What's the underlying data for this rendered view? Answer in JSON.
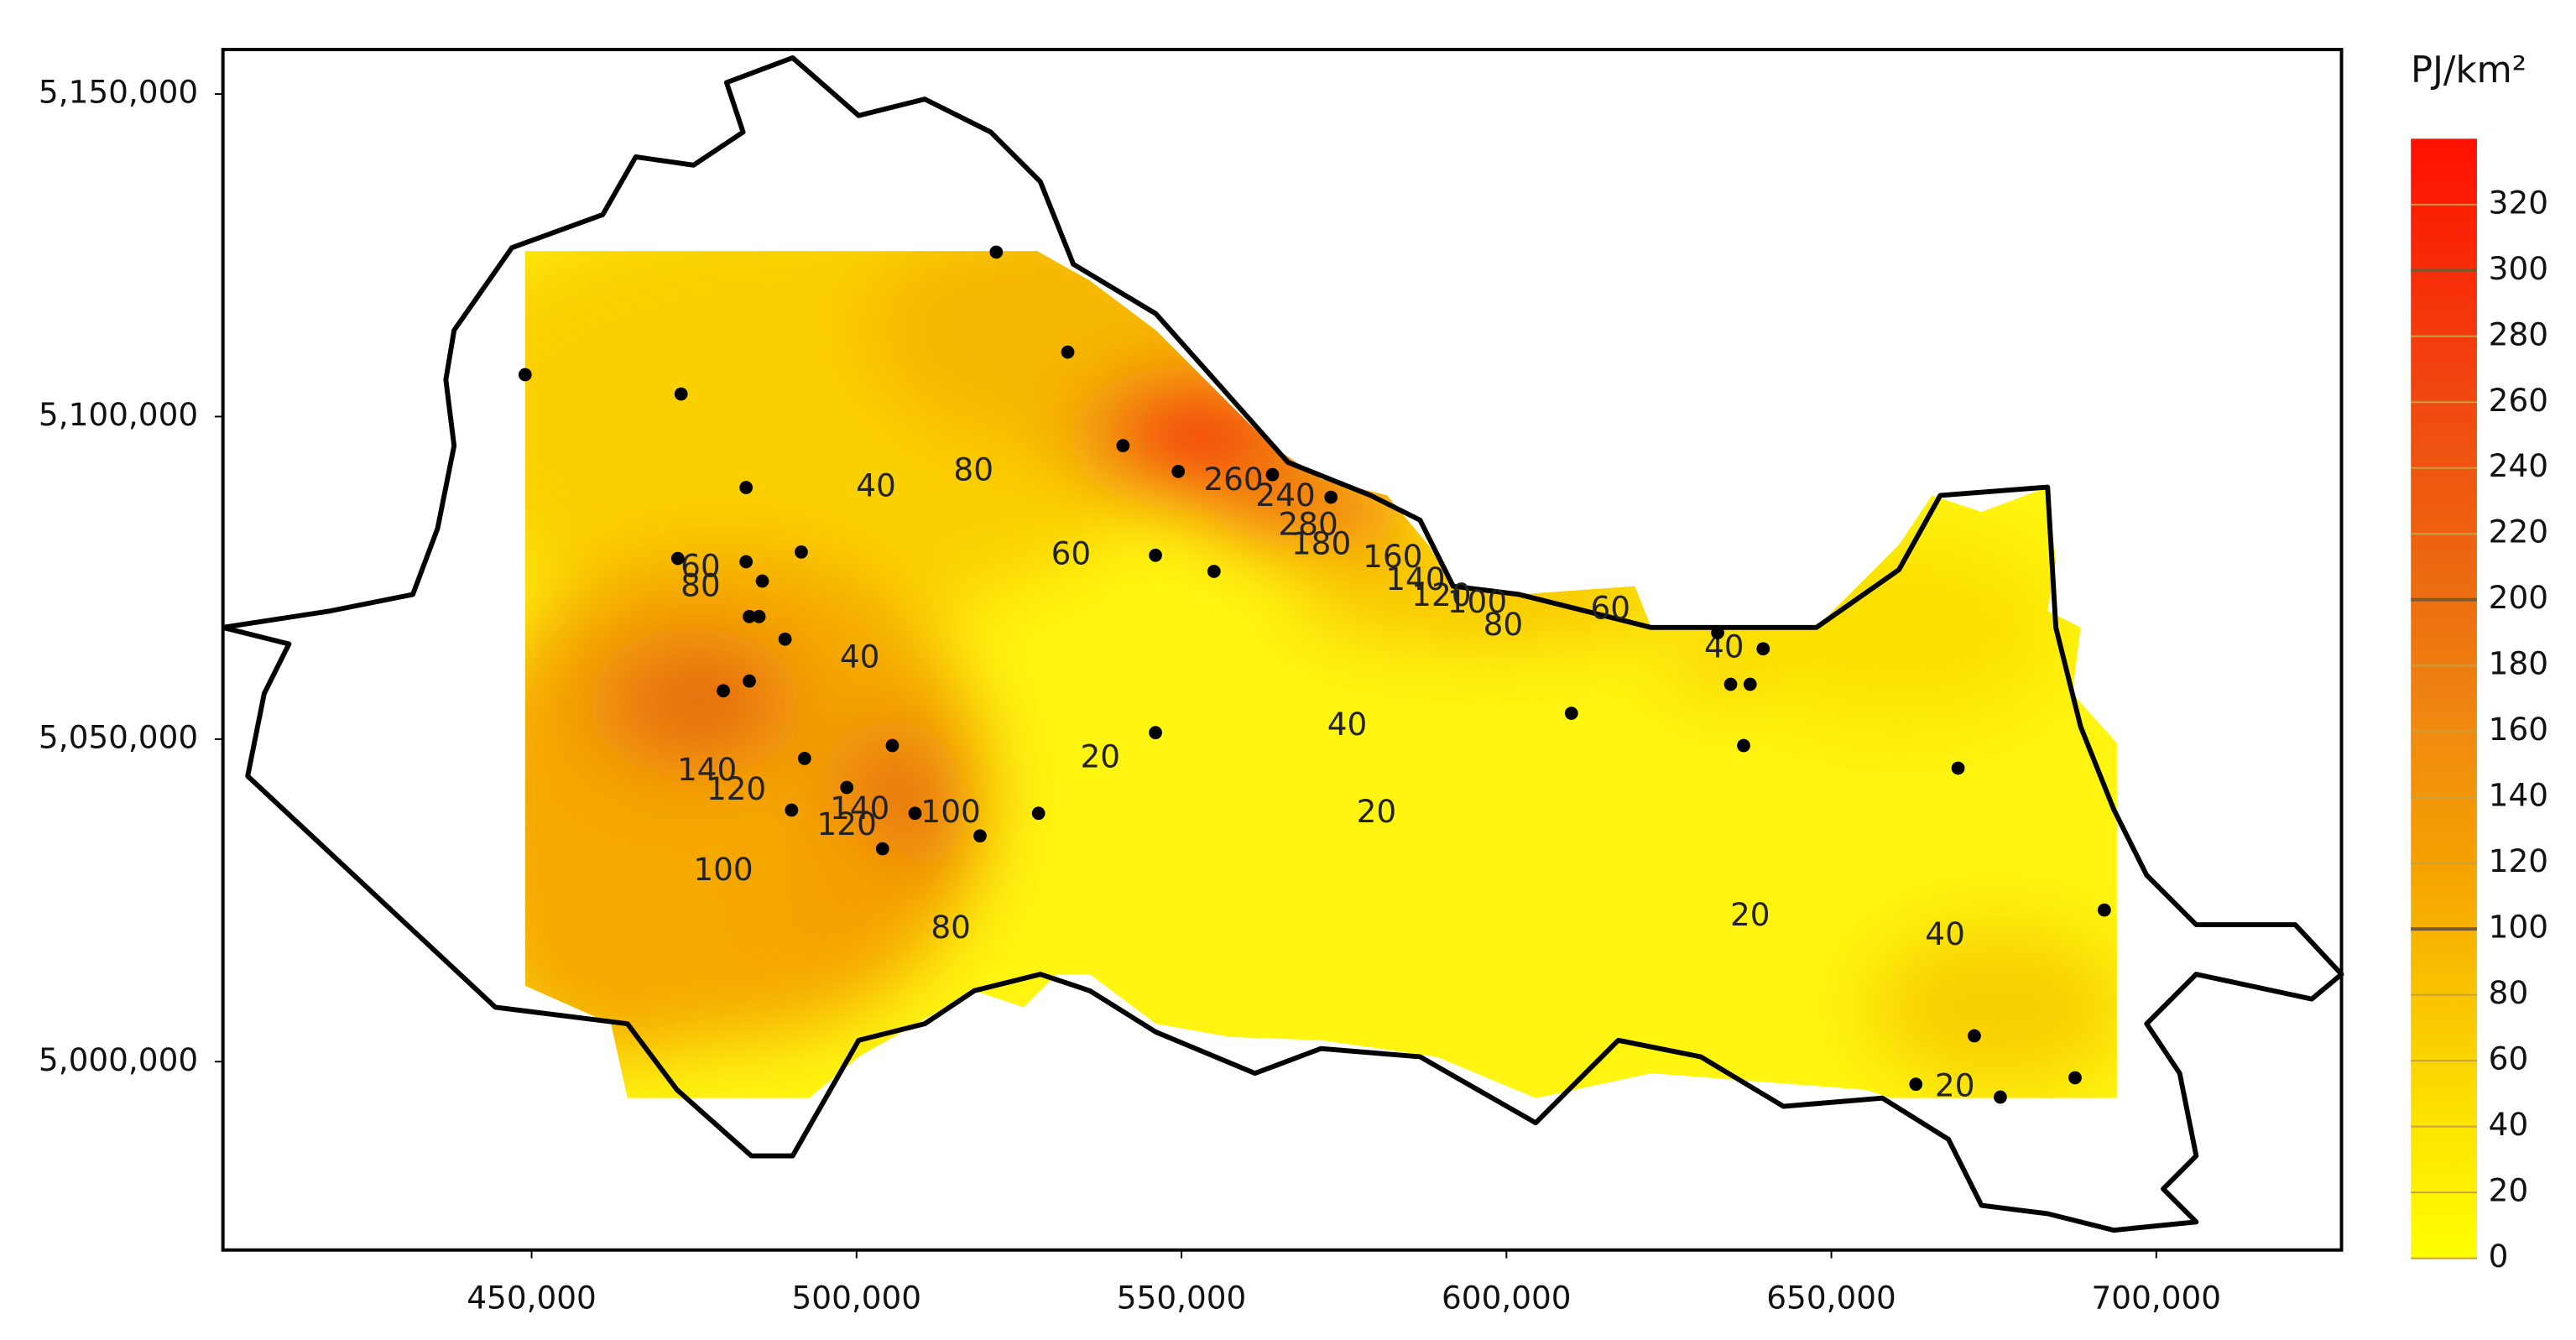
{
  "chart_data": {
    "type": "contour",
    "colorbar_label": "PJ/km²",
    "xlim": [
      402500,
      728500
    ],
    "ylim": [
      4970800,
      5156900
    ],
    "clim": [
      0,
      340
    ],
    "xticks": [
      {
        "value": 450000,
        "label": "450,000"
      },
      {
        "value": 500000,
        "label": "500,000"
      },
      {
        "value": 550000,
        "label": "550,000"
      },
      {
        "value": 600000,
        "label": "600,000"
      },
      {
        "value": 650000,
        "label": "650,000"
      },
      {
        "value": 700000,
        "label": "700,000"
      }
    ],
    "yticks": [
      {
        "value": 5000000,
        "label": "5,000,000"
      },
      {
        "value": 5050000,
        "label": "5,050,000"
      },
      {
        "value": 5100000,
        "label": "5,100,000"
      },
      {
        "value": 5150000,
        "label": "5,150,000"
      }
    ],
    "cticks": [
      0,
      20,
      40,
      60,
      80,
      100,
      120,
      140,
      160,
      180,
      200,
      220,
      240,
      260,
      280,
      300,
      320
    ],
    "points": {
      "x": [
        449000,
        473000,
        521500,
        532500,
        541000,
        549500,
        483000,
        472500,
        483000,
        491500,
        485500,
        483500,
        485000,
        489000,
        483500,
        479500,
        546000,
        555000,
        573000,
        564000,
        492000,
        505500,
        498500,
        509000,
        504000,
        519000,
        528000,
        490000,
        546000,
        610000,
        632500,
        639500,
        634500,
        637500,
        636500,
        669500,
        692000,
        672000,
        676000,
        687500,
        663000
      ],
      "y": [
        5106500,
        5103500,
        5125500,
        5110000,
        5095500,
        5091500,
        5089000,
        5078000,
        5077500,
        5079000,
        5074500,
        5069000,
        5069000,
        5065500,
        5059000,
        5057500,
        5078500,
        5076000,
        5087500,
        5091000,
        5047000,
        5049000,
        5042500,
        5038500,
        5033000,
        5035000,
        5038500,
        5039000,
        5051000,
        5054000,
        5066500,
        5064000,
        5058500,
        5058500,
        5049000,
        5045500,
        5023500,
        5004000,
        4994500,
        4997500,
        4996500
      ]
    },
    "contour_labels": {
      "values": [
        40,
        80,
        60,
        40,
        20,
        40,
        20,
        60,
        80,
        100,
        120,
        140,
        160,
        260,
        240,
        280,
        180,
        60,
        80,
        140,
        120,
        100,
        120,
        140,
        100,
        80,
        20,
        40,
        40,
        20
      ],
      "x": [
        503000,
        518000,
        533000,
        500500,
        537500,
        575500,
        580000,
        616000,
        599500,
        595500,
        590000,
        586000,
        582500,
        558000,
        566000,
        569500,
        571500,
        476000,
        476000,
        477000,
        481500,
        479500,
        498500,
        500500,
        514500,
        514500,
        637500,
        667500,
        633500,
        669000
      ],
      "y": [
        5089000,
        5091500,
        5078500,
        5062500,
        5047000,
        5052000,
        5038500,
        5070000,
        5067500,
        5071000,
        5072000,
        5074500,
        5078000,
        5090000,
        5087500,
        5083000,
        5080000,
        5076500,
        5073500,
        5045000,
        5042000,
        5029500,
        5036500,
        5039000,
        5038500,
        5020500,
        5022500,
        5019500,
        5064000,
        4996000
      ]
    }
  }
}
